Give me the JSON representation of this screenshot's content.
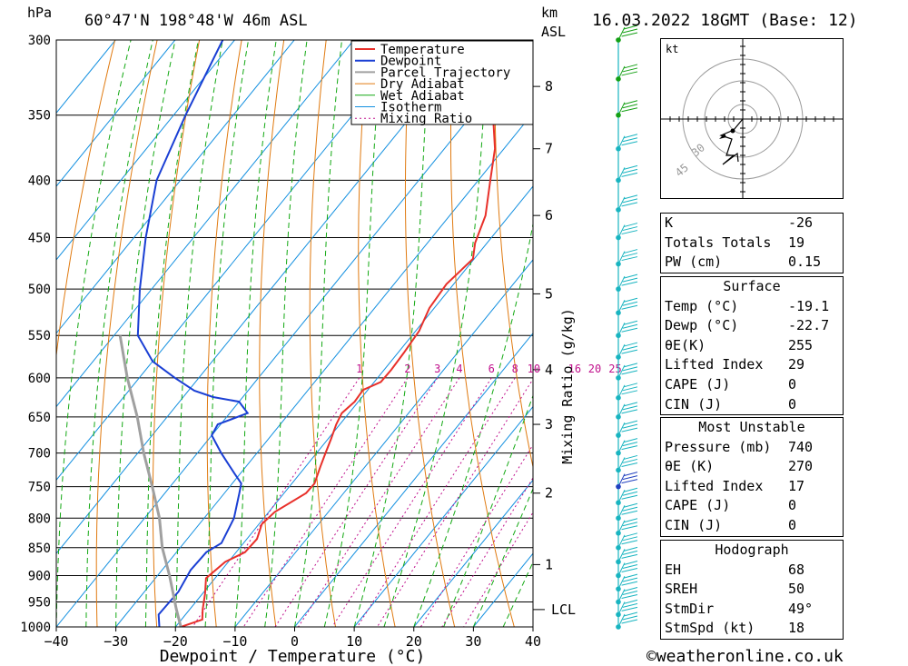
{
  "header": {
    "hpa_unit": "hPa",
    "location": "60°47'N  198°48'W  46m  ASL",
    "km_unit": "km",
    "asl_unit": "ASL",
    "datetime": "16.03.2022  18GMT  (Base: 12)"
  },
  "legend": [
    "Temperature",
    "Dewpoint",
    "Parcel Trajectory",
    "Dry Adiabat",
    "Wet Adiabat",
    "Isotherm",
    "Mixing Ratio"
  ],
  "colors": {
    "temperature": "#e8302a",
    "dewpoint": "#1a3fd4",
    "parcel": "#a0a0a0",
    "dry_adiabat": "#e07a10",
    "wet_adiabat": "#12a812",
    "isotherm": "#1490e0",
    "mixing_ratio": "#c0108c",
    "wind": "#18b4c0",
    "wind_upper": "#14a014",
    "wind_mid": "#2040c0"
  },
  "chart_data": {
    "type": "line",
    "title": "60°47'N  198°48'W  46m  ASL",
    "xlabel": "Dewpoint / Temperature (°C)",
    "ylabel": "hPa",
    "y_scale": "log",
    "xlim": [
      -40,
      40
    ],
    "ylim": [
      1000,
      300
    ],
    "x_ticks": [
      "−40",
      "−30",
      "−20",
      "−10",
      "0",
      "10",
      "20",
      "30",
      "40"
    ],
    "pressure_levels": [
      "300",
      "350",
      "400",
      "450",
      "500",
      "550",
      "600",
      "650",
      "700",
      "750",
      "800",
      "850",
      "900",
      "950",
      "1000"
    ],
    "height_km_ticks": [
      {
        "label": "8",
        "p": 330
      },
      {
        "label": "7",
        "p": 375
      },
      {
        "label": "6",
        "p": 430
      },
      {
        "label": "5",
        "p": 505
      },
      {
        "label": "4",
        "p": 590
      },
      {
        "label": "3",
        "p": 660
      },
      {
        "label": "2",
        "p": 760
      },
      {
        "label": "1",
        "p": 880
      }
    ],
    "lcl": {
      "label": "LCL",
      "p": 965
    },
    "mixing_ratio_axis_label": "Mixing Ratio (g/kg)",
    "mixing_ratio_labels": [
      "1",
      "2",
      "3",
      "4",
      "6",
      "8",
      "10",
      "16",
      "20",
      "25"
    ],
    "series": [
      {
        "name": "Temperature",
        "points": [
          [
            1000,
            -19.1
          ],
          [
            985,
            -16.5
          ],
          [
            965,
            -17.8
          ],
          [
            935,
            -19.5
          ],
          [
            905,
            -21.5
          ],
          [
            875,
            -20.5
          ],
          [
            858,
            -18.5
          ],
          [
            835,
            -18.3
          ],
          [
            810,
            -19.5
          ],
          [
            790,
            -19.0
          ],
          [
            760,
            -16.3
          ],
          [
            745,
            -16.2
          ],
          [
            720,
            -17.5
          ],
          [
            700,
            -18.5
          ],
          [
            680,
            -19.5
          ],
          [
            660,
            -20.6
          ],
          [
            645,
            -21.2
          ],
          [
            630,
            -20.6
          ],
          [
            615,
            -20.8
          ],
          [
            605,
            -18.9
          ],
          [
            590,
            -18.8
          ],
          [
            570,
            -19.0
          ],
          [
            545,
            -19.4
          ],
          [
            520,
            -20.8
          ],
          [
            495,
            -21.2
          ],
          [
            470,
            -20.2
          ],
          [
            455,
            -22.0
          ],
          [
            430,
            -24.0
          ],
          [
            400,
            -28.0
          ],
          [
            375,
            -31.5
          ],
          [
            357,
            -35.0
          ],
          [
            350,
            -35.0
          ],
          [
            330,
            -38.5
          ],
          [
            310,
            -41.5
          ],
          [
            300,
            -42.0
          ]
        ]
      },
      {
        "name": "Dewpoint",
        "points": [
          [
            1000,
            -22.7
          ],
          [
            975,
            -24.5
          ],
          [
            930,
            -24.3
          ],
          [
            890,
            -25.2
          ],
          [
            858,
            -25.0
          ],
          [
            842,
            -23.7
          ],
          [
            800,
            -25.0
          ],
          [
            760,
            -27.5
          ],
          [
            745,
            -28.5
          ],
          [
            730,
            -31.0
          ],
          [
            700,
            -36.0
          ],
          [
            675,
            -40.0
          ],
          [
            660,
            -40.5
          ],
          [
            645,
            -37.0
          ],
          [
            630,
            -40.0
          ],
          [
            624,
            -45.0
          ],
          [
            616,
            -49.0
          ],
          [
            600,
            -54.0
          ],
          [
            580,
            -60.0
          ],
          [
            550,
            -66.0
          ],
          [
            500,
            -72.0
          ],
          [
            450,
            -78.0
          ],
          [
            400,
            -84.0
          ],
          [
            350,
            -88.0
          ],
          [
            300,
            -92.0
          ]
        ]
      },
      {
        "name": "Parcel Trajectory",
        "points": [
          [
            1000,
            -19.1
          ],
          [
            965,
            -22.2
          ],
          [
            900,
            -28.0
          ],
          [
            850,
            -33.0
          ],
          [
            800,
            -37.5
          ],
          [
            750,
            -43.0
          ],
          [
            700,
            -49.0
          ],
          [
            650,
            -55.0
          ],
          [
            600,
            -62.0
          ],
          [
            550,
            -69.0
          ]
        ]
      }
    ]
  },
  "hodograph": {
    "unit": "kt",
    "ring_labels": [
      "30",
      "45"
    ]
  },
  "indices": {
    "rows": [
      {
        "label": "K",
        "value": "-26"
      },
      {
        "label": "Totals Totals",
        "value": "19"
      },
      {
        "label": "PW (cm)",
        "value": "0.15"
      }
    ]
  },
  "surface": {
    "title": "Surface",
    "rows": [
      {
        "label": "Temp (°C)",
        "value": "-19.1"
      },
      {
        "label": "Dewp (°C)",
        "value": "-22.7"
      },
      {
        "label": "θE(K)",
        "value": "255"
      },
      {
        "label": "Lifted Index",
        "value": "29"
      },
      {
        "label": "CAPE (J)",
        "value": "0"
      },
      {
        "label": "CIN (J)",
        "value": "0"
      }
    ]
  },
  "most_unstable": {
    "title": "Most Unstable",
    "rows": [
      {
        "label": "Pressure (mb)",
        "value": "740"
      },
      {
        "label": "θE (K)",
        "value": "270"
      },
      {
        "label": "Lifted Index",
        "value": "17"
      },
      {
        "label": "CAPE (J)",
        "value": "0"
      },
      {
        "label": "CIN (J)",
        "value": "0"
      }
    ]
  },
  "hodograph_table": {
    "title": "Hodograph",
    "rows": [
      {
        "label": "EH",
        "value": "68"
      },
      {
        "label": "SREH",
        "value": "50"
      },
      {
        "label": "StmDir",
        "value": "49°"
      },
      {
        "label": "StmSpd (kt)",
        "value": "18"
      }
    ]
  },
  "footer": {
    "copyright": "©weatheronline.co.uk"
  }
}
